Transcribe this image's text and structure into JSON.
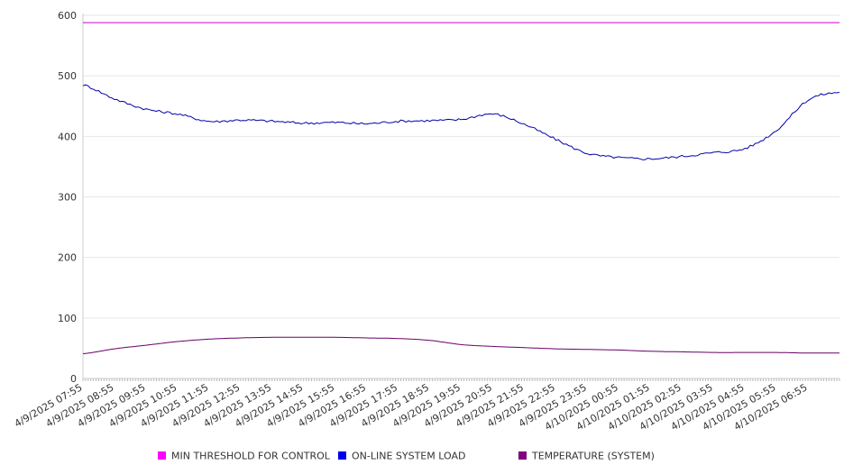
{
  "chart_data": {
    "type": "line",
    "ylim": [
      0,
      600
    ],
    "y_ticks": [
      0,
      100,
      200,
      300,
      400,
      500,
      600
    ],
    "grid": true,
    "legend_position": "bottom",
    "x_tick_labels": [
      "4/9/2025 07:55",
      "4/9/2025 08:55",
      "4/9/2025 09:55",
      "4/9/2025 10:55",
      "4/9/2025 11:55",
      "4/9/2025 12:55",
      "4/9/2025 13:55",
      "4/9/2025 14:55",
      "4/9/2025 15:55",
      "4/9/2025 16:55",
      "4/9/2025 17:55",
      "4/9/2025 18:55",
      "4/9/2025 19:55",
      "4/9/2025 20:55",
      "4/9/2025 21:55",
      "4/9/2025 22:55",
      "4/9/2025 23:55",
      "4/10/2025 00:55",
      "4/10/2025 01:55",
      "4/10/2025 02:55",
      "4/10/2025 03:55",
      "4/10/2025 04:55",
      "4/10/2025 05:55",
      "4/10/2025 06:55"
    ],
    "series": [
      {
        "name": "MIN THRESHOLD FOR CONTROL",
        "color": "#cc00cc",
        "legend_color": "#ff00ff",
        "values": [
          588,
          588,
          588,
          588,
          588,
          588,
          588,
          588,
          588,
          588,
          588,
          588,
          588,
          588,
          588,
          588,
          588,
          588,
          588,
          588,
          588,
          588,
          588,
          588,
          588
        ]
      },
      {
        "name": "ON-LINE SYSTEM LOAD",
        "color": "#0000aa",
        "legend_color": "#0000ee",
        "values": [
          485,
          462,
          445,
          437,
          425,
          427,
          425,
          422,
          423,
          421,
          425,
          426,
          428,
          437,
          420,
          395,
          372,
          365,
          363,
          367,
          373,
          380,
          410,
          460,
          473
        ]
      },
      {
        "name": "TEMPERATURE (SYSTEM)",
        "color": "#660066",
        "legend_color": "#800080",
        "values": [
          41,
          49,
          55,
          61,
          65,
          67,
          68,
          68,
          68,
          67,
          66,
          63,
          56,
          53,
          51,
          49,
          48,
          47,
          45,
          44,
          43,
          43,
          43,
          42,
          42
        ]
      }
    ]
  }
}
